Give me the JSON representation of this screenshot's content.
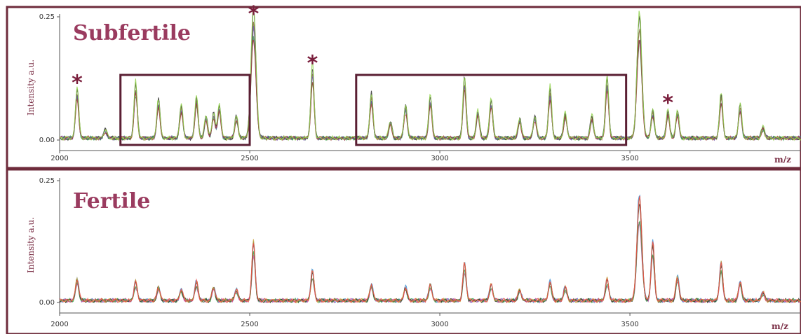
{
  "chart_data": [
    {
      "type": "line",
      "title": "Subfertile",
      "ylabel": "Intensity a.u.",
      "xunit": "m/z",
      "xlim": [
        2000,
        3950
      ],
      "ylim": [
        -0.01,
        0.25
      ],
      "xticks": [
        "2000",
        "2500",
        "3000",
        "3500"
      ],
      "yticks": [
        "0.00",
        "0.25"
      ],
      "highlight_regions": [
        [
          2160,
          2500
        ],
        [
          2780,
          3490
        ]
      ],
      "starred_peaks": [
        2046,
        2510,
        2665,
        3600
      ],
      "peaks": [
        {
          "x": 2046,
          "y": 0.09
        },
        {
          "x": 2120,
          "y": 0.015
        },
        {
          "x": 2200,
          "y": 0.1
        },
        {
          "x": 2260,
          "y": 0.07
        },
        {
          "x": 2320,
          "y": 0.06
        },
        {
          "x": 2360,
          "y": 0.075
        },
        {
          "x": 2385,
          "y": 0.04
        },
        {
          "x": 2405,
          "y": 0.045
        },
        {
          "x": 2420,
          "y": 0.06
        },
        {
          "x": 2465,
          "y": 0.04
        },
        {
          "x": 2510,
          "y": 0.23
        },
        {
          "x": 2665,
          "y": 0.13
        },
        {
          "x": 2820,
          "y": 0.08
        },
        {
          "x": 2870,
          "y": 0.03
        },
        {
          "x": 2910,
          "y": 0.06
        },
        {
          "x": 2975,
          "y": 0.075
        },
        {
          "x": 3065,
          "y": 0.11
        },
        {
          "x": 3100,
          "y": 0.05
        },
        {
          "x": 3135,
          "y": 0.07
        },
        {
          "x": 3210,
          "y": 0.035
        },
        {
          "x": 3250,
          "y": 0.04
        },
        {
          "x": 3290,
          "y": 0.09
        },
        {
          "x": 3330,
          "y": 0.045
        },
        {
          "x": 3400,
          "y": 0.04
        },
        {
          "x": 3440,
          "y": 0.11
        },
        {
          "x": 3525,
          "y": 0.22
        },
        {
          "x": 3560,
          "y": 0.05
        },
        {
          "x": 3600,
          "y": 0.05
        },
        {
          "x": 3625,
          "y": 0.05
        },
        {
          "x": 3740,
          "y": 0.08
        },
        {
          "x": 3790,
          "y": 0.06
        },
        {
          "x": 3850,
          "y": 0.02
        }
      ],
      "series_colors": [
        "#8a6d3b",
        "#2b2b2b",
        "#3aa84b",
        "#6d4aa6",
        "#a33a3a",
        "#8fd14a"
      ]
    },
    {
      "type": "line",
      "title": "Fertile",
      "ylabel": "Intensity a.u.",
      "xunit": "m/z",
      "xlim": [
        2000,
        3950
      ],
      "ylim": [
        -0.01,
        0.25
      ],
      "xticks": [
        "2000",
        "2500",
        "3000",
        "3500"
      ],
      "yticks": [
        "0.00",
        "0.25"
      ],
      "peaks": [
        {
          "x": 2046,
          "y": 0.04
        },
        {
          "x": 2200,
          "y": 0.035
        },
        {
          "x": 2260,
          "y": 0.025
        },
        {
          "x": 2320,
          "y": 0.02
        },
        {
          "x": 2360,
          "y": 0.035
        },
        {
          "x": 2405,
          "y": 0.025
        },
        {
          "x": 2465,
          "y": 0.02
        },
        {
          "x": 2510,
          "y": 0.11
        },
        {
          "x": 2665,
          "y": 0.055
        },
        {
          "x": 2820,
          "y": 0.03
        },
        {
          "x": 2910,
          "y": 0.025
        },
        {
          "x": 2975,
          "y": 0.03
        },
        {
          "x": 3065,
          "y": 0.07
        },
        {
          "x": 3135,
          "y": 0.03
        },
        {
          "x": 3210,
          "y": 0.02
        },
        {
          "x": 3290,
          "y": 0.035
        },
        {
          "x": 3330,
          "y": 0.025
        },
        {
          "x": 3440,
          "y": 0.04
        },
        {
          "x": 3525,
          "y": 0.19
        },
        {
          "x": 3560,
          "y": 0.11
        },
        {
          "x": 3625,
          "y": 0.045
        },
        {
          "x": 3740,
          "y": 0.07
        },
        {
          "x": 3790,
          "y": 0.035
        },
        {
          "x": 3850,
          "y": 0.015
        }
      ],
      "series_colors": [
        "#3a8fd1",
        "#d14aa8",
        "#3aa84b",
        "#2b2b2b",
        "#c9a23a",
        "#e84a4a"
      ]
    }
  ]
}
